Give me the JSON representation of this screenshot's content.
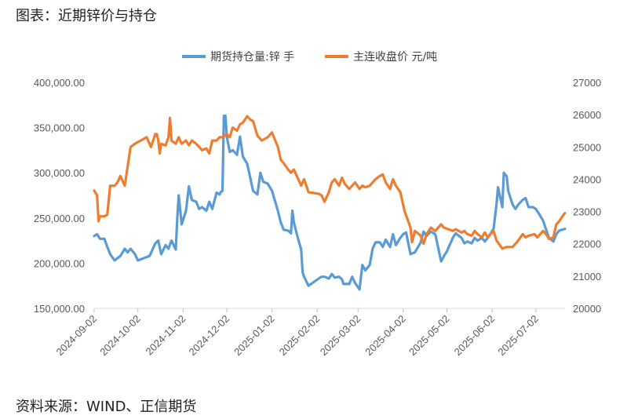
{
  "figure_title": "图表：近期锌价与持仓",
  "source": "资料来源：WIND、正信期货",
  "chart_data": {
    "type": "line",
    "legend_position": "top",
    "grid": false,
    "left_axis": {
      "min": 150000,
      "max": 400000,
      "step": 50000,
      "tick_labels": [
        "150,000.00",
        "200,000.00",
        "250,000.00",
        "300,000.00",
        "350,000.00",
        "400,000.00"
      ]
    },
    "right_axis": {
      "min": 20000,
      "max": 27000,
      "step": 1000,
      "tick_labels": [
        "20000",
        "21000",
        "22000",
        "23000",
        "24000",
        "25000",
        "26000",
        "27000"
      ]
    },
    "x_axis": {
      "start": "2024-09-02",
      "end": "2025-07-22",
      "tick_labels": [
        "2024-09-02",
        "2024-10-02",
        "2024-11-02",
        "2024-12-02",
        "2025-01-02",
        "2025-02-02",
        "2025-03-02",
        "2025-04-02",
        "2025-05-02",
        "2025-06-02",
        "2025-07-02"
      ]
    },
    "series": [
      {
        "name": "期货持仓量:锌 手",
        "axis": "left",
        "color": "#5B9BD5",
        "points": [
          [
            "2024-09-02",
            230000
          ],
          [
            "2024-09-04",
            232000
          ],
          [
            "2024-09-06",
            227000
          ],
          [
            "2024-09-09",
            227000
          ],
          [
            "2024-09-11",
            218000
          ],
          [
            "2024-09-13",
            210000
          ],
          [
            "2024-09-16",
            203000
          ],
          [
            "2024-09-20",
            208000
          ],
          [
            "2024-09-23",
            216000
          ],
          [
            "2024-09-25",
            212000
          ],
          [
            "2024-09-27",
            216000
          ],
          [
            "2024-09-30",
            210000
          ],
          [
            "2024-10-02",
            203000
          ],
          [
            "2024-10-10",
            208000
          ],
          [
            "2024-10-14",
            222000
          ],
          [
            "2024-10-16",
            225000
          ],
          [
            "2024-10-18",
            210000
          ],
          [
            "2024-10-21",
            220000
          ],
          [
            "2024-10-23",
            216000
          ],
          [
            "2024-10-25",
            225000
          ],
          [
            "2024-10-28",
            215000
          ],
          [
            "2024-10-29",
            250000
          ],
          [
            "2024-10-30",
            275000
          ],
          [
            "2024-11-01",
            243000
          ],
          [
            "2024-11-04",
            258000
          ],
          [
            "2024-11-06",
            285000
          ],
          [
            "2024-11-08",
            270000
          ],
          [
            "2024-11-11",
            268000
          ],
          [
            "2024-11-13",
            260000
          ],
          [
            "2024-11-15",
            262000
          ],
          [
            "2024-11-18",
            258000
          ],
          [
            "2024-11-20",
            268000
          ],
          [
            "2024-11-22",
            260000
          ],
          [
            "2024-11-25",
            278000
          ],
          [
            "2024-11-27",
            276000
          ],
          [
            "2024-11-28",
            279000
          ],
          [
            "2024-11-29",
            280000
          ],
          [
            "2024-11-30",
            363000
          ],
          [
            "2024-12-01",
            363000
          ],
          [
            "2024-12-02",
            340000
          ],
          [
            "2024-12-04",
            323000
          ],
          [
            "2024-12-06",
            325000
          ],
          [
            "2024-12-09",
            320000
          ],
          [
            "2024-12-11",
            340000
          ],
          [
            "2024-12-13",
            318000
          ],
          [
            "2024-12-16",
            310000
          ],
          [
            "2024-12-18",
            295000
          ],
          [
            "2024-12-20",
            280000
          ],
          [
            "2024-12-23",
            276000
          ],
          [
            "2024-12-25",
            300000
          ],
          [
            "2024-12-27",
            290000
          ],
          [
            "2024-12-30",
            288000
          ],
          [
            "2025-01-02",
            280000
          ],
          [
            "2025-01-06",
            258000
          ],
          [
            "2025-01-08",
            245000
          ],
          [
            "2025-01-10",
            237000
          ],
          [
            "2025-01-13",
            236000
          ],
          [
            "2025-01-15",
            233000
          ],
          [
            "2025-01-16",
            258000
          ],
          [
            "2025-01-17",
            245000
          ],
          [
            "2025-01-20",
            226000
          ],
          [
            "2025-01-22",
            215000
          ],
          [
            "2025-01-23",
            190000
          ],
          [
            "2025-01-24",
            185000
          ],
          [
            "2025-01-27",
            175000
          ],
          [
            "2025-02-03",
            183000
          ],
          [
            "2025-02-05",
            185000
          ],
          [
            "2025-02-07",
            185000
          ],
          [
            "2025-02-10",
            183000
          ],
          [
            "2025-02-12",
            188000
          ],
          [
            "2025-02-14",
            184000
          ],
          [
            "2025-02-17",
            185000
          ],
          [
            "2025-02-19",
            182000
          ],
          [
            "2025-02-20",
            177000
          ],
          [
            "2025-02-24",
            177000
          ],
          [
            "2025-02-26",
            185000
          ],
          [
            "2025-02-28",
            178000
          ],
          [
            "2025-03-03",
            171000
          ],
          [
            "2025-03-05",
            198000
          ],
          [
            "2025-03-07",
            192000
          ],
          [
            "2025-03-10",
            198000
          ],
          [
            "2025-03-12",
            216000
          ],
          [
            "2025-03-14",
            223000
          ],
          [
            "2025-03-17",
            223000
          ],
          [
            "2025-03-19",
            218000
          ],
          [
            "2025-03-21",
            226000
          ],
          [
            "2025-03-24",
            218000
          ],
          [
            "2025-03-26",
            232000
          ],
          [
            "2025-03-28",
            220000
          ],
          [
            "2025-03-31",
            228000
          ],
          [
            "2025-04-02",
            232000
          ],
          [
            "2025-04-04",
            234000
          ],
          [
            "2025-04-07",
            210000
          ],
          [
            "2025-04-10",
            212000
          ],
          [
            "2025-04-14",
            223000
          ],
          [
            "2025-04-16",
            235000
          ],
          [
            "2025-04-18",
            230000
          ],
          [
            "2025-04-21",
            235000
          ],
          [
            "2025-04-24",
            232000
          ],
          [
            "2025-04-28",
            202000
          ],
          [
            "2025-04-30",
            208000
          ],
          [
            "2025-05-02",
            213000
          ],
          [
            "2025-05-06",
            228000
          ],
          [
            "2025-05-08",
            233000
          ],
          [
            "2025-05-12",
            228000
          ],
          [
            "2025-05-14",
            222000
          ],
          [
            "2025-05-16",
            224000
          ],
          [
            "2025-05-19",
            222000
          ],
          [
            "2025-05-21",
            228000
          ],
          [
            "2025-05-23",
            225000
          ],
          [
            "2025-05-26",
            228000
          ],
          [
            "2025-05-28",
            224000
          ],
          [
            "2025-05-30",
            228000
          ],
          [
            "2025-06-03",
            238000
          ],
          [
            "2025-06-05",
            265000
          ],
          [
            "2025-06-06",
            284000
          ],
          [
            "2025-06-09",
            262000
          ],
          [
            "2025-06-10",
            300000
          ],
          [
            "2025-06-12",
            296000
          ],
          [
            "2025-06-13",
            280000
          ],
          [
            "2025-06-16",
            265000
          ],
          [
            "2025-06-18",
            260000
          ],
          [
            "2025-06-20",
            265000
          ],
          [
            "2025-06-23",
            270000
          ],
          [
            "2025-06-25",
            272000
          ],
          [
            "2025-06-27",
            262000
          ],
          [
            "2025-06-30",
            262000
          ],
          [
            "2025-07-02",
            260000
          ],
          [
            "2025-07-04",
            255000
          ],
          [
            "2025-07-07",
            247000
          ],
          [
            "2025-07-09",
            237000
          ],
          [
            "2025-07-11",
            228000
          ],
          [
            "2025-07-14",
            224000
          ],
          [
            "2025-07-16",
            232000
          ],
          [
            "2025-07-18",
            236000
          ],
          [
            "2025-07-22",
            238000
          ]
        ]
      },
      {
        "name": "主连收盘价 元/吨",
        "axis": "right",
        "color": "#ED7D31",
        "points": [
          [
            "2024-09-02",
            23650
          ],
          [
            "2024-09-04",
            23500
          ],
          [
            "2024-09-05",
            22700
          ],
          [
            "2024-09-06",
            22850
          ],
          [
            "2024-09-09",
            22850
          ],
          [
            "2024-09-11",
            22900
          ],
          [
            "2024-09-13",
            23800
          ],
          [
            "2024-09-16",
            23800
          ],
          [
            "2024-09-18",
            23900
          ],
          [
            "2024-09-20",
            24100
          ],
          [
            "2024-09-23",
            23800
          ],
          [
            "2024-09-25",
            24400
          ],
          [
            "2024-09-27",
            25000
          ],
          [
            "2024-09-30",
            25100
          ],
          [
            "2024-10-04",
            25200
          ],
          [
            "2024-10-08",
            25300
          ],
          [
            "2024-10-11",
            25000
          ],
          [
            "2024-10-14",
            25400
          ],
          [
            "2024-10-15",
            25400
          ],
          [
            "2024-10-16",
            25200
          ],
          [
            "2024-10-17",
            24800
          ],
          [
            "2024-10-18",
            25100
          ],
          [
            "2024-10-21",
            25050
          ],
          [
            "2024-10-23",
            25300
          ],
          [
            "2024-10-24",
            25900
          ],
          [
            "2024-10-25",
            25200
          ],
          [
            "2024-10-28",
            25100
          ],
          [
            "2024-10-30",
            25300
          ],
          [
            "2024-11-01",
            25100
          ],
          [
            "2024-11-04",
            25200
          ],
          [
            "2024-11-06",
            25050
          ],
          [
            "2024-11-08",
            25200
          ],
          [
            "2024-11-11",
            25100
          ],
          [
            "2024-11-13",
            25000
          ],
          [
            "2024-11-15",
            24900
          ],
          [
            "2024-11-18",
            24950
          ],
          [
            "2024-11-20",
            24800
          ],
          [
            "2024-11-22",
            25200
          ],
          [
            "2024-11-25",
            25200
          ],
          [
            "2024-11-27",
            25300
          ],
          [
            "2024-11-29",
            25300
          ],
          [
            "2024-12-02",
            25400
          ],
          [
            "2024-12-04",
            25300
          ],
          [
            "2024-12-06",
            25600
          ],
          [
            "2024-12-09",
            25500
          ],
          [
            "2024-12-11",
            25700
          ],
          [
            "2024-12-13",
            25750
          ],
          [
            "2024-12-16",
            25950
          ],
          [
            "2024-12-18",
            25850
          ],
          [
            "2024-12-20",
            25800
          ],
          [
            "2024-12-23",
            25350
          ],
          [
            "2024-12-26",
            25200
          ],
          [
            "2024-12-30",
            25300
          ],
          [
            "2025-01-02",
            25450
          ],
          [
            "2025-01-06",
            25000
          ],
          [
            "2025-01-08",
            24600
          ],
          [
            "2025-01-10",
            24500
          ],
          [
            "2025-01-13",
            24300
          ],
          [
            "2025-01-15",
            24200
          ],
          [
            "2025-01-17",
            24300
          ],
          [
            "2025-01-20",
            24000
          ],
          [
            "2025-01-22",
            23800
          ],
          [
            "2025-01-24",
            24000
          ],
          [
            "2025-01-27",
            23600
          ],
          [
            "2025-02-03",
            23550
          ],
          [
            "2025-02-05",
            23500
          ],
          [
            "2025-02-07",
            23300
          ],
          [
            "2025-02-10",
            23600
          ],
          [
            "2025-02-12",
            23900
          ],
          [
            "2025-02-14",
            24000
          ],
          [
            "2025-02-17",
            23800
          ],
          [
            "2025-02-19",
            24050
          ],
          [
            "2025-02-21",
            23850
          ],
          [
            "2025-02-24",
            23700
          ],
          [
            "2025-02-26",
            23800
          ],
          [
            "2025-02-28",
            23900
          ],
          [
            "2025-03-03",
            23700
          ],
          [
            "2025-03-05",
            23800
          ],
          [
            "2025-03-07",
            23750
          ],
          [
            "2025-03-10",
            23800
          ],
          [
            "2025-03-12",
            23900
          ],
          [
            "2025-03-14",
            24000
          ],
          [
            "2025-03-17",
            24100
          ],
          [
            "2025-03-19",
            24150
          ],
          [
            "2025-03-21",
            23900
          ],
          [
            "2025-03-24",
            23700
          ],
          [
            "2025-03-26",
            24000
          ],
          [
            "2025-03-28",
            23800
          ],
          [
            "2025-03-31",
            23600
          ],
          [
            "2025-04-03",
            23000
          ],
          [
            "2025-04-07",
            22500
          ],
          [
            "2025-04-08",
            22050
          ],
          [
            "2025-04-10",
            22400
          ],
          [
            "2025-04-14",
            22250
          ],
          [
            "2025-04-16",
            22000
          ],
          [
            "2025-04-18",
            22300
          ],
          [
            "2025-04-21",
            22500
          ],
          [
            "2025-04-24",
            22400
          ],
          [
            "2025-04-28",
            22600
          ],
          [
            "2025-04-30",
            22500
          ],
          [
            "2025-05-06",
            22400
          ],
          [
            "2025-05-08",
            22450
          ],
          [
            "2025-05-12",
            22350
          ],
          [
            "2025-05-14",
            22400
          ],
          [
            "2025-05-16",
            22300
          ],
          [
            "2025-05-19",
            22250
          ],
          [
            "2025-05-21",
            22400
          ],
          [
            "2025-05-23",
            22300
          ],
          [
            "2025-05-26",
            22200
          ],
          [
            "2025-05-28",
            22350
          ],
          [
            "2025-05-30",
            22200
          ],
          [
            "2025-06-03",
            22400
          ],
          [
            "2025-06-05",
            22100
          ],
          [
            "2025-06-09",
            21850
          ],
          [
            "2025-06-12",
            21900
          ],
          [
            "2025-06-16",
            21900
          ],
          [
            "2025-06-19",
            22050
          ],
          [
            "2025-06-23",
            22300
          ],
          [
            "2025-06-25",
            22200
          ],
          [
            "2025-06-27",
            22250
          ],
          [
            "2025-07-01",
            22300
          ],
          [
            "2025-07-03",
            22200
          ],
          [
            "2025-07-07",
            22400
          ],
          [
            "2025-07-09",
            22300
          ],
          [
            "2025-07-11",
            22150
          ],
          [
            "2025-07-14",
            22200
          ],
          [
            "2025-07-16",
            22600
          ],
          [
            "2025-07-18",
            22700
          ],
          [
            "2025-07-21",
            22900
          ],
          [
            "2025-07-22",
            22950
          ]
        ]
      }
    ]
  }
}
